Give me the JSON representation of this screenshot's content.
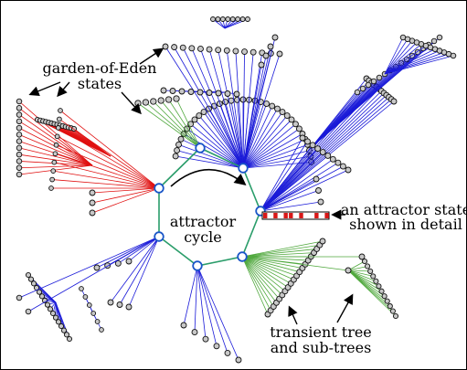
{
  "labels": {
    "garden_line1": "garden-of-Eden",
    "garden_line2": "states",
    "attractor_line1": "attractor",
    "attractor_line2": "cycle",
    "state_line1": "an attractor state",
    "state_line2": "shown in detail",
    "transient_line1": "transient tree",
    "transient_line2": "and sub-trees"
  },
  "colors": {
    "cycle": "#2a9d6a",
    "node_ring": "#1a56c8",
    "red_tree": "#e01010",
    "blue_tree": "#1a1ad8",
    "green_tree": "#4fa83c",
    "leaf_fill": "#c8c8c8",
    "state_cells": "#d81818"
  },
  "diagram": {
    "attractor_nodes": 7,
    "attractor_state_cells": [
      "on",
      "off",
      "on",
      "off",
      "on",
      "on",
      "off",
      "on",
      "off",
      "off",
      "on",
      "off",
      "on"
    ]
  }
}
